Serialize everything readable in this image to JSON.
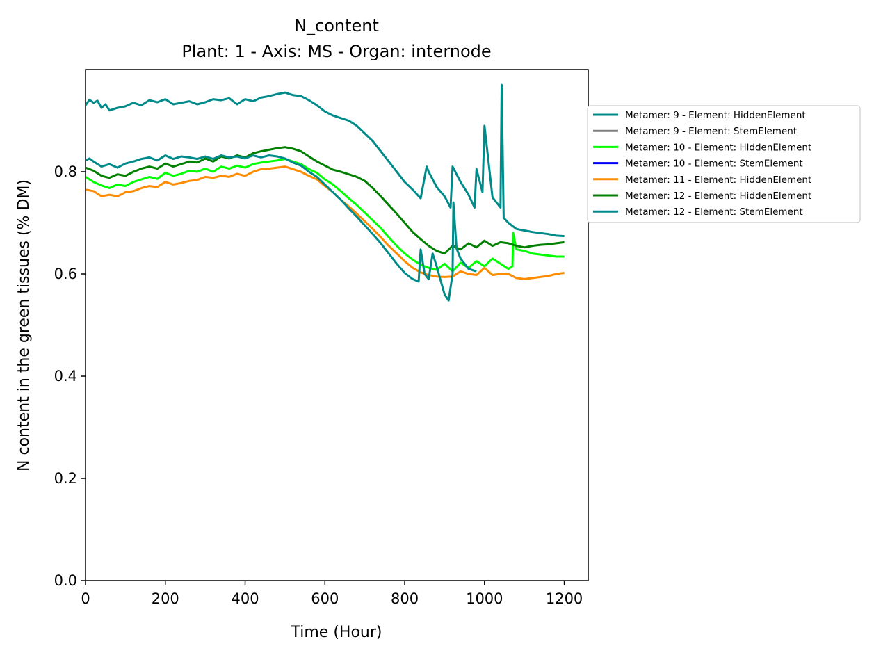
{
  "chart_data": {
    "type": "line",
    "title": "N_content",
    "subtitle": "Plant: 1 - Axis: MS - Organ: internode",
    "xlabel": "Time (Hour)",
    "ylabel": "N content in the green tissues (% DM)",
    "xlim": [
      0,
      1260
    ],
    "ylim": [
      0,
      1.0
    ],
    "xticks": [
      0,
      200,
      400,
      600,
      800,
      1000,
      1200
    ],
    "yticks": [
      0.0,
      0.2,
      0.4,
      0.6,
      0.8
    ],
    "xtick_labels": [
      "0",
      "200",
      "400",
      "600",
      "800",
      "1000",
      "1200"
    ],
    "ytick_labels": [
      "0.0",
      "0.2",
      "0.4",
      "0.6",
      "0.8"
    ],
    "grid": false,
    "legend_position": "outside right, upper",
    "series": [
      {
        "name": "Metamer: 9 - Element: HiddenElement",
        "color": "#008b8b",
        "x": [
          0,
          10,
          20,
          30,
          40,
          50,
          60,
          80,
          100,
          120,
          140,
          160,
          180,
          200,
          220,
          240,
          260,
          280,
          300,
          320,
          340,
          360,
          380,
          400,
          420,
          440,
          460,
          480,
          500,
          520,
          540,
          560,
          580,
          600,
          620,
          640,
          660,
          680,
          700,
          720,
          740,
          760,
          780,
          800,
          820,
          840,
          855,
          860,
          880,
          900,
          915,
          920,
          940,
          960,
          975,
          980,
          995,
          1000,
          1020,
          1040,
          1043,
          1048,
          1060,
          1080,
          1100,
          1120,
          1140,
          1160,
          1180,
          1200
        ],
        "y": [
          0.93,
          0.941,
          0.935,
          0.939,
          0.925,
          0.932,
          0.92,
          0.925,
          0.928,
          0.935,
          0.93,
          0.94,
          0.936,
          0.942,
          0.932,
          0.935,
          0.938,
          0.932,
          0.936,
          0.942,
          0.94,
          0.944,
          0.932,
          0.942,
          0.938,
          0.945,
          0.948,
          0.952,
          0.955,
          0.95,
          0.948,
          0.94,
          0.93,
          0.918,
          0.91,
          0.905,
          0.9,
          0.89,
          0.875,
          0.86,
          0.84,
          0.82,
          0.8,
          0.78,
          0.765,
          0.748,
          0.81,
          0.8,
          0.77,
          0.752,
          0.73,
          0.81,
          0.78,
          0.755,
          0.73,
          0.805,
          0.76,
          0.89,
          0.75,
          0.73,
          0.97,
          0.71,
          0.7,
          0.688,
          0.685,
          0.682,
          0.68,
          0.678,
          0.675,
          0.674
        ]
      },
      {
        "name": "Metamer: 9 - Element: StemElement",
        "color": "#808080",
        "x": [],
        "y": []
      },
      {
        "name": "Metamer: 10 - Element: HiddenElement",
        "color": "#00ff00",
        "x": [
          0,
          20,
          40,
          60,
          80,
          100,
          120,
          140,
          160,
          180,
          200,
          220,
          240,
          260,
          280,
          300,
          320,
          340,
          360,
          380,
          400,
          420,
          440,
          460,
          480,
          500,
          520,
          540,
          560,
          580,
          600,
          620,
          640,
          660,
          680,
          700,
          720,
          740,
          760,
          780,
          800,
          820,
          840,
          860,
          880,
          900,
          920,
          940,
          960,
          980,
          1000,
          1020,
          1040,
          1060,
          1070,
          1072,
          1080,
          1100,
          1120,
          1140,
          1160,
          1180,
          1200
        ],
        "y": [
          0.79,
          0.78,
          0.773,
          0.768,
          0.775,
          0.772,
          0.78,
          0.785,
          0.79,
          0.786,
          0.798,
          0.792,
          0.796,
          0.802,
          0.8,
          0.806,
          0.8,
          0.81,
          0.806,
          0.812,
          0.808,
          0.815,
          0.818,
          0.82,
          0.822,
          0.825,
          0.82,
          0.815,
          0.805,
          0.798,
          0.785,
          0.775,
          0.762,
          0.748,
          0.735,
          0.72,
          0.705,
          0.69,
          0.672,
          0.655,
          0.64,
          0.628,
          0.618,
          0.612,
          0.608,
          0.62,
          0.605,
          0.622,
          0.612,
          0.625,
          0.615,
          0.63,
          0.62,
          0.61,
          0.615,
          0.68,
          0.648,
          0.645,
          0.64,
          0.638,
          0.636,
          0.634,
          0.634
        ]
      },
      {
        "name": "Metamer: 10 - Element: StemElement",
        "color": "#0000ff",
        "x": [],
        "y": []
      },
      {
        "name": "Metamer: 11 - Element: HiddenElement",
        "color": "#ff8c00",
        "x": [
          0,
          20,
          40,
          60,
          80,
          100,
          120,
          140,
          160,
          180,
          200,
          220,
          240,
          260,
          280,
          300,
          320,
          340,
          360,
          380,
          400,
          420,
          440,
          460,
          480,
          500,
          520,
          540,
          560,
          580,
          600,
          620,
          640,
          660,
          680,
          700,
          720,
          740,
          760,
          780,
          800,
          820,
          840,
          860,
          880,
          900,
          920,
          940,
          960,
          980,
          1000,
          1020,
          1040,
          1060,
          1080,
          1100,
          1120,
          1140,
          1160,
          1180,
          1200
        ],
        "y": [
          0.765,
          0.762,
          0.752,
          0.755,
          0.752,
          0.76,
          0.762,
          0.768,
          0.772,
          0.77,
          0.78,
          0.775,
          0.778,
          0.782,
          0.784,
          0.79,
          0.788,
          0.792,
          0.79,
          0.796,
          0.792,
          0.8,
          0.805,
          0.806,
          0.808,
          0.81,
          0.805,
          0.8,
          0.792,
          0.785,
          0.772,
          0.76,
          0.745,
          0.732,
          0.718,
          0.703,
          0.688,
          0.672,
          0.655,
          0.64,
          0.625,
          0.612,
          0.603,
          0.598,
          0.595,
          0.594,
          0.595,
          0.605,
          0.6,
          0.598,
          0.612,
          0.598,
          0.6,
          0.6,
          0.592,
          0.59,
          0.592,
          0.594,
          0.596,
          0.6,
          0.602
        ]
      },
      {
        "name": "Metamer: 12 - Element: HiddenElement",
        "color": "#008000",
        "x": [
          0,
          20,
          40,
          60,
          80,
          100,
          120,
          140,
          160,
          180,
          200,
          220,
          240,
          260,
          280,
          300,
          320,
          340,
          360,
          380,
          400,
          420,
          440,
          460,
          480,
          500,
          520,
          540,
          560,
          580,
          600,
          620,
          640,
          660,
          680,
          700,
          720,
          740,
          760,
          780,
          800,
          820,
          840,
          860,
          880,
          900,
          920,
          940,
          960,
          980,
          1000,
          1020,
          1040,
          1060,
          1080,
          1100,
          1120,
          1140,
          1160,
          1180,
          1200
        ],
        "y": [
          0.808,
          0.802,
          0.792,
          0.788,
          0.795,
          0.792,
          0.8,
          0.806,
          0.81,
          0.806,
          0.816,
          0.81,
          0.815,
          0.82,
          0.818,
          0.826,
          0.82,
          0.83,
          0.826,
          0.832,
          0.828,
          0.836,
          0.84,
          0.843,
          0.846,
          0.848,
          0.845,
          0.84,
          0.83,
          0.82,
          0.812,
          0.804,
          0.8,
          0.795,
          0.79,
          0.782,
          0.768,
          0.752,
          0.735,
          0.718,
          0.7,
          0.682,
          0.668,
          0.655,
          0.645,
          0.64,
          0.655,
          0.648,
          0.66,
          0.652,
          0.665,
          0.655,
          0.662,
          0.66,
          0.655,
          0.652,
          0.655,
          0.657,
          0.658,
          0.66,
          0.662
        ]
      },
      {
        "name": "Metamer: 12 - Element: StemElement",
        "color": "#008b8b",
        "x": [
          0,
          10,
          20,
          40,
          60,
          80,
          100,
          120,
          140,
          160,
          180,
          200,
          220,
          240,
          260,
          280,
          300,
          320,
          340,
          360,
          380,
          400,
          420,
          440,
          460,
          480,
          500,
          520,
          540,
          560,
          580,
          600,
          620,
          640,
          660,
          680,
          700,
          720,
          740,
          760,
          780,
          800,
          820,
          835,
          840,
          850,
          860,
          870,
          880,
          900,
          910,
          920,
          922,
          930,
          940,
          960,
          980
        ],
        "y": [
          0.822,
          0.826,
          0.82,
          0.81,
          0.815,
          0.808,
          0.816,
          0.82,
          0.825,
          0.828,
          0.822,
          0.832,
          0.825,
          0.83,
          0.828,
          0.825,
          0.83,
          0.825,
          0.832,
          0.828,
          0.83,
          0.826,
          0.832,
          0.828,
          0.832,
          0.83,
          0.826,
          0.818,
          0.812,
          0.8,
          0.79,
          0.775,
          0.76,
          0.745,
          0.728,
          0.712,
          0.695,
          0.678,
          0.66,
          0.64,
          0.62,
          0.602,
          0.59,
          0.585,
          0.648,
          0.6,
          0.59,
          0.64,
          0.615,
          0.56,
          0.548,
          0.6,
          0.74,
          0.65,
          0.63,
          0.61,
          0.605
        ]
      }
    ]
  }
}
